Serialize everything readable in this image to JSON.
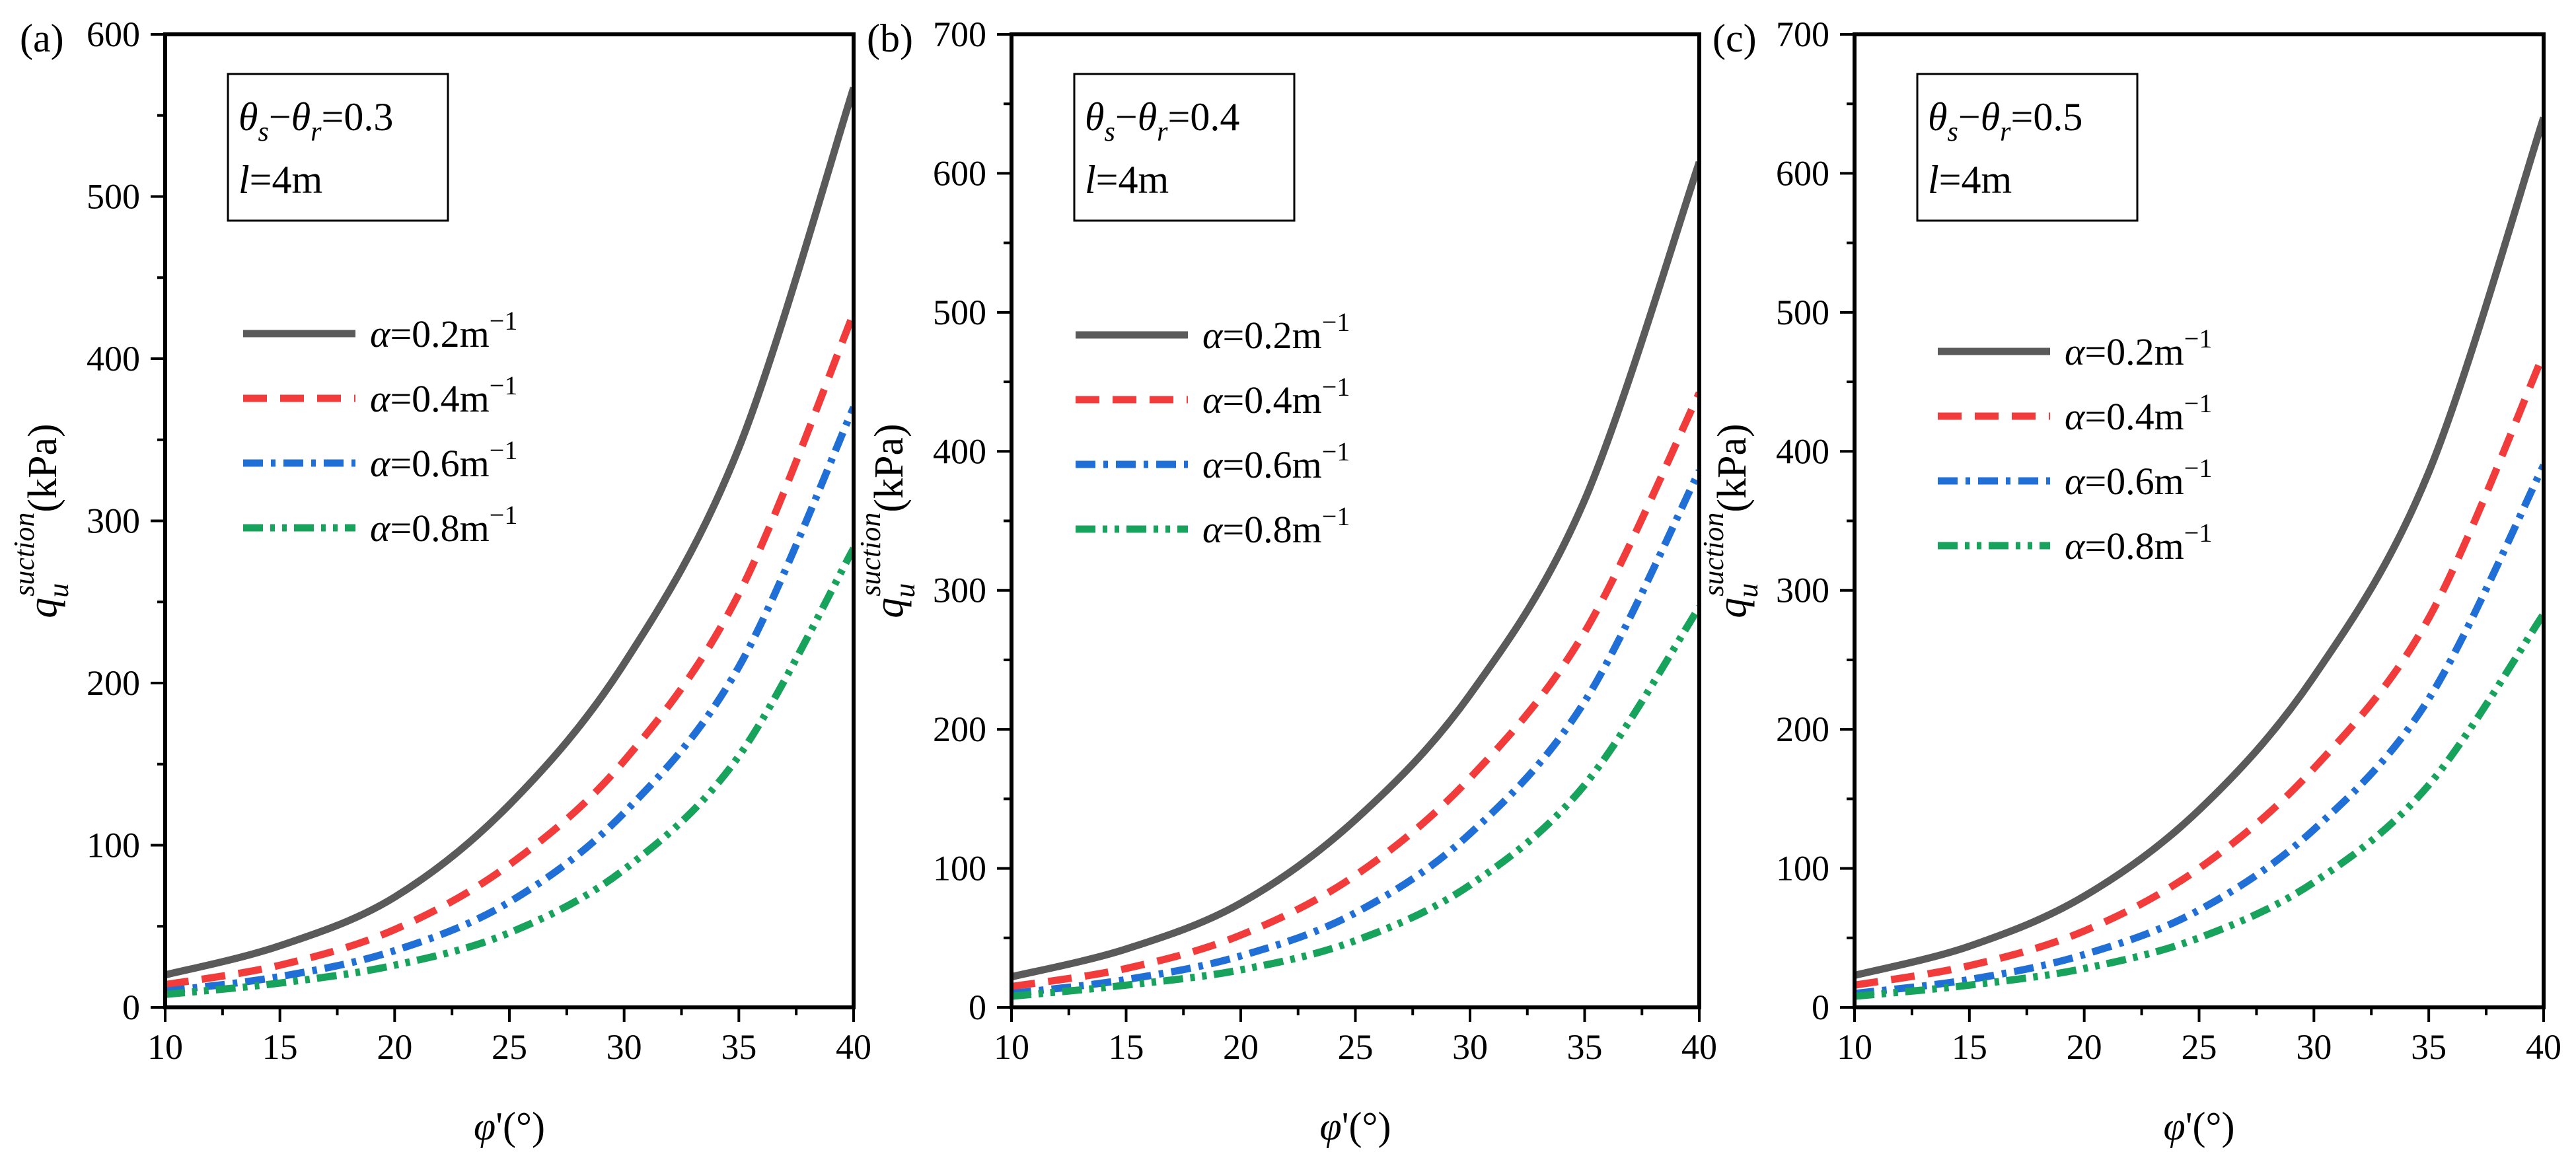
{
  "figure": {
    "x_axis_label": "φ'(°)",
    "y_axis_label_main": "q",
    "y_axis_label_sub": "u",
    "y_axis_label_sup": "suction",
    "y_axis_label_unit": "(kPa)",
    "legend_entries": [
      {
        "prefix": "α",
        "text": "=0.2m",
        "sup": "−1",
        "color": "#5a5a5a",
        "style": "solid"
      },
      {
        "prefix": "α",
        "text": "=0.4m",
        "sup": "−1",
        "color": "#f23c3c",
        "style": "dash"
      },
      {
        "prefix": "α",
        "text": "=0.6m",
        "sup": "−1",
        "color": "#1f6fd6",
        "style": "dashdot"
      },
      {
        "prefix": "α",
        "text": "=0.8m",
        "sup": "−1",
        "color": "#17a35c",
        "style": "dashdotdot"
      }
    ],
    "info_l_text": "l",
    "info_l_value": "=4m"
  },
  "chart_data": [
    {
      "type": "line",
      "panel_label": "(a)",
      "theta_label_value": "=0.3",
      "x": [
        10,
        15,
        20,
        25,
        30,
        35,
        40
      ],
      "xlim": [
        10,
        40
      ],
      "xticks": [
        "10",
        "15",
        "20",
        "25",
        "30",
        "35",
        "40"
      ],
      "ylim": [
        0,
        600
      ],
      "yticks": [
        "0",
        "100",
        "200",
        "300",
        "400",
        "500",
        "600"
      ],
      "series": [
        {
          "name": "α=0.2m−1",
          "values": [
            20,
            38,
            68,
            125,
            212,
            345,
            567
          ]
        },
        {
          "name": "α=0.4m−1",
          "values": [
            14,
            26,
            48,
            88,
            152,
            255,
            428
          ]
        },
        {
          "name": "α=0.6m−1",
          "values": [
            10,
            19,
            35,
            65,
            120,
            210,
            370
          ]
        },
        {
          "name": "α=0.8m−1",
          "values": [
            8,
            15,
            26,
            46,
            85,
            155,
            283
          ]
        }
      ]
    },
    {
      "type": "line",
      "panel_label": "(b)",
      "theta_label_value": "=0.4",
      "x": [
        10,
        15,
        20,
        25,
        30,
        35,
        40
      ],
      "xlim": [
        10,
        40
      ],
      "xticks": [
        "10",
        "15",
        "20",
        "25",
        "30",
        "35",
        "40"
      ],
      "ylim": [
        0,
        700
      ],
      "yticks": [
        "0",
        "100",
        "200",
        "300",
        "400",
        "500",
        "600",
        "700"
      ],
      "series": [
        {
          "name": "α=0.2m−1",
          "values": [
            22,
            42,
            75,
            135,
            225,
            365,
            608
          ]
        },
        {
          "name": "α=0.4m−1",
          "values": [
            15,
            28,
            52,
            95,
            165,
            270,
            442
          ]
        },
        {
          "name": "α=0.6m−1",
          "values": [
            10,
            20,
            37,
            68,
            125,
            220,
            386
          ]
        },
        {
          "name": "α=0.8m−1",
          "values": [
            8,
            16,
            27,
            48,
            88,
            160,
            288
          ]
        }
      ]
    },
    {
      "type": "line",
      "panel_label": "(c)",
      "theta_label_value": "=0.5",
      "x": [
        10,
        15,
        20,
        25,
        30,
        35,
        40
      ],
      "xlim": [
        10,
        40
      ],
      "xticks": [
        "10",
        "15",
        "20",
        "25",
        "30",
        "35",
        "40"
      ],
      "ylim": [
        0,
        700
      ],
      "yticks": [
        "0",
        "100",
        "200",
        "300",
        "400",
        "500",
        "600",
        "700"
      ],
      "series": [
        {
          "name": "α=0.2m−1",
          "values": [
            23,
            44,
            80,
            142,
            238,
            385,
            640
          ]
        },
        {
          "name": "α=0.4m−1",
          "values": [
            16,
            30,
            55,
            100,
            172,
            280,
            470
          ]
        },
        {
          "name": "α=0.6m−1",
          "values": [
            10,
            20,
            38,
            70,
            128,
            222,
            390
          ]
        },
        {
          "name": "α=0.8m−1",
          "values": [
            8,
            16,
            28,
            50,
            90,
            160,
            283
          ]
        }
      ]
    }
  ]
}
